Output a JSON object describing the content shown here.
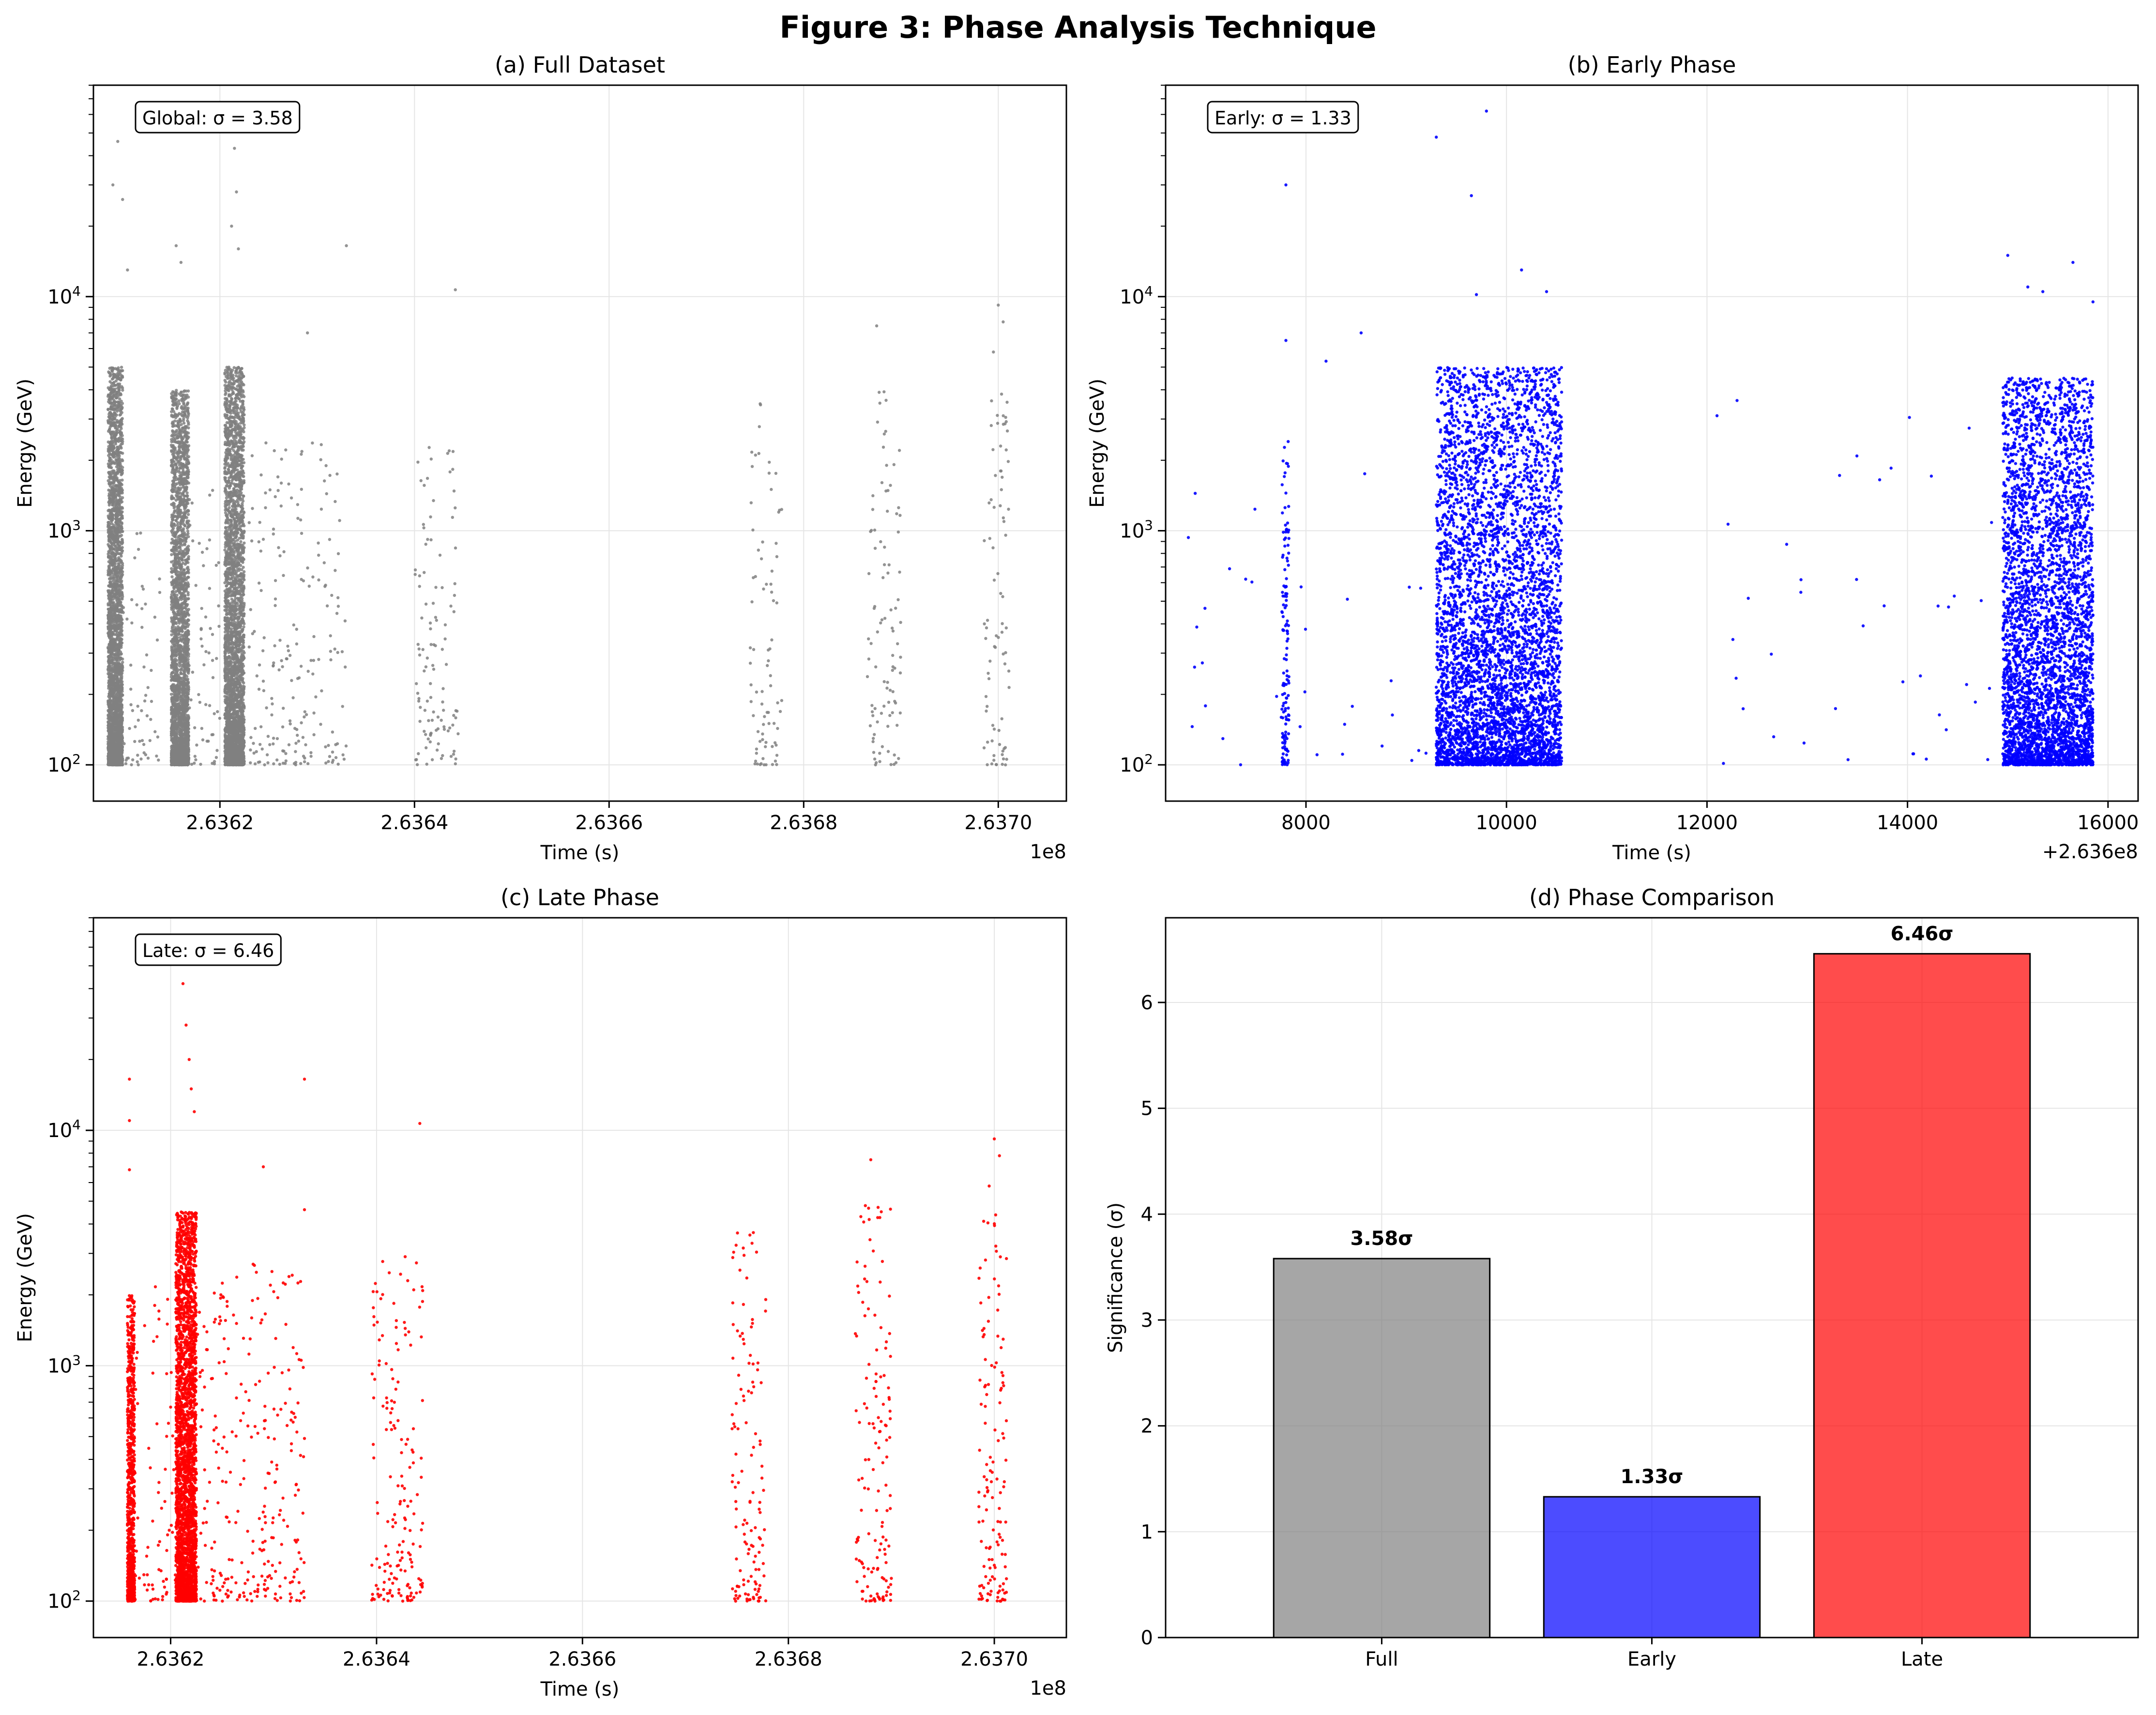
{
  "figure_title": "Figure 3: Phase Analysis Technique",
  "colors": {
    "full": "#808080",
    "early": "#0000ff",
    "late": "#ff0000",
    "grid": "#e5e5e5"
  },
  "chart_data": [
    {
      "type": "scatter",
      "title": "(a) Full Dataset",
      "xlabel": "Time (s)",
      "ylabel": "Energy (GeV)",
      "x_offset_label": "1e8",
      "xlim": [
        263607000,
        263707000
      ],
      "ylim": [
        70,
        80000
      ],
      "yscale": "log",
      "grid": true,
      "xticks": [
        {
          "v": 263620000,
          "label": "2.6362"
        },
        {
          "v": 263640000,
          "label": "2.6364"
        },
        {
          "v": 263660000,
          "label": "2.6366"
        },
        {
          "v": 263680000,
          "label": "2.6368"
        },
        {
          "v": 263700000,
          "label": "2.6370"
        }
      ],
      "yticks": [
        {
          "v": 100,
          "base": "10",
          "exp": "2"
        },
        {
          "v": 1000,
          "base": "10",
          "exp": "3"
        },
        {
          "v": 10000,
          "base": "10",
          "exp": "4"
        }
      ],
      "annotation": "Global: σ = 3.58",
      "color_key": "full",
      "clusters": [
        {
          "x": [
            263608500,
            263610000
          ],
          "n": 3000,
          "ymin": 100,
          "ymax": 5000
        },
        {
          "x": [
            263615000,
            263616800
          ],
          "n": 2800,
          "ymin": 100,
          "ymax": 4000
        },
        {
          "x": [
            263620500,
            263622500
          ],
          "n": 3500,
          "ymin": 100,
          "ymax": 5000
        },
        {
          "x": [
            263610000,
            263614000
          ],
          "n": 60,
          "ymin": 100,
          "ymax": 1000
        },
        {
          "x": [
            263616800,
            263620000
          ],
          "n": 60,
          "ymin": 100,
          "ymax": 1500
        },
        {
          "x": [
            263623000,
            263627000
          ],
          "n": 90,
          "ymin": 100,
          "ymax": 2500
        },
        {
          "x": [
            263627000,
            263633000
          ],
          "n": 110,
          "ymin": 100,
          "ymax": 2500
        },
        {
          "x": [
            263640000,
            263644500
          ],
          "n": 110,
          "ymin": 100,
          "ymax": 2500
        },
        {
          "x": [
            263674500,
            263677800
          ],
          "n": 80,
          "ymin": 100,
          "ymax": 3500
        },
        {
          "x": [
            263686500,
            263690000
          ],
          "n": 95,
          "ymin": 100,
          "ymax": 4000
        },
        {
          "x": [
            263698500,
            263701200
          ],
          "n": 80,
          "ymin": 100,
          "ymax": 4000
        }
      ],
      "outliers": [
        {
          "x": 263609500,
          "y": 46000
        },
        {
          "x": 263609000,
          "y": 30000
        },
        {
          "x": 263610000,
          "y": 26000
        },
        {
          "x": 263610500,
          "y": 13000
        },
        {
          "x": 263615500,
          "y": 16500
        },
        {
          "x": 263616000,
          "y": 14000
        },
        {
          "x": 263621500,
          "y": 43000
        },
        {
          "x": 263621700,
          "y": 28000
        },
        {
          "x": 263621200,
          "y": 20000
        },
        {
          "x": 263621900,
          "y": 16000
        },
        {
          "x": 263633000,
          "y": 16500
        },
        {
          "x": 263644200,
          "y": 10700
        },
        {
          "x": 263629000,
          "y": 7000
        },
        {
          "x": 263687500,
          "y": 7500
        },
        {
          "x": 263699500,
          "y": 5800
        },
        {
          "x": 263700000,
          "y": 9200
        },
        {
          "x": 263700500,
          "y": 7800
        }
      ]
    },
    {
      "type": "scatter",
      "title": "(b) Early Phase",
      "xlabel": "Time (s)",
      "ylabel": "Energy (GeV)",
      "x_offset_label": "+2.636e8",
      "xlim": [
        6600,
        16300
      ],
      "ylim": [
        70,
        80000
      ],
      "yscale": "log",
      "grid": true,
      "xticks": [
        {
          "v": 8000,
          "label": "8000"
        },
        {
          "v": 10000,
          "label": "10000"
        },
        {
          "v": 12000,
          "label": "12000"
        },
        {
          "v": 14000,
          "label": "14000"
        },
        {
          "v": 16000,
          "label": "16000"
        }
      ],
      "yticks": [
        {
          "v": 100,
          "base": "10",
          "exp": "2"
        },
        {
          "v": 1000,
          "base": "10",
          "exp": "3"
        },
        {
          "v": 10000,
          "base": "10",
          "exp": "4"
        }
      ],
      "annotation": "Early: σ = 1.33",
      "color_key": "early",
      "clusters": [
        {
          "x": [
            7760,
            7830
          ],
          "n": 140,
          "ymin": 100,
          "ymax": 2500
        },
        {
          "x": [
            9300,
            10550
          ],
          "n": 5200,
          "ymin": 100,
          "ymax": 5000
        },
        {
          "x": [
            14950,
            15850
          ],
          "n": 4400,
          "ymin": 100,
          "ymax": 4500
        },
        {
          "x": [
            6800,
            9200
          ],
          "n": 35,
          "ymin": 100,
          "ymax": 2000
        },
        {
          "x": [
            12000,
            14900
          ],
          "n": 40,
          "ymin": 100,
          "ymax": 3500
        }
      ],
      "outliers": [
        {
          "x": 7800,
          "y": 30000
        },
        {
          "x": 7800,
          "y": 6500
        },
        {
          "x": 8200,
          "y": 5300
        },
        {
          "x": 8550,
          "y": 7000
        },
        {
          "x": 9300,
          "y": 48000
        },
        {
          "x": 9800,
          "y": 62000
        },
        {
          "x": 9650,
          "y": 27000
        },
        {
          "x": 10150,
          "y": 13000
        },
        {
          "x": 10400,
          "y": 10500
        },
        {
          "x": 9700,
          "y": 10200
        },
        {
          "x": 15000,
          "y": 15000
        },
        {
          "x": 15200,
          "y": 11000
        },
        {
          "x": 15650,
          "y": 14000
        },
        {
          "x": 15350,
          "y": 10500
        },
        {
          "x": 15850,
          "y": 9500
        },
        {
          "x": 12300,
          "y": 3600
        },
        {
          "x": 12100,
          "y": 3100
        }
      ]
    },
    {
      "type": "scatter",
      "title": "(c) Late Phase",
      "xlabel": "Time (s)",
      "ylabel": "Energy (GeV)",
      "x_offset_label": "1e8",
      "xlim": [
        263612500,
        263707000
      ],
      "ylim": [
        70,
        80000
      ],
      "yscale": "log",
      "grid": true,
      "xticks": [
        {
          "v": 263620000,
          "label": "2.6362"
        },
        {
          "v": 263640000,
          "label": "2.6364"
        },
        {
          "v": 263660000,
          "label": "2.6366"
        },
        {
          "v": 263680000,
          "label": "2.6368"
        },
        {
          "v": 263700000,
          "label": "2.6370"
        }
      ],
      "yticks": [
        {
          "v": 100,
          "base": "10",
          "exp": "2"
        },
        {
          "v": 1000,
          "base": "10",
          "exp": "3"
        },
        {
          "v": 10000,
          "base": "10",
          "exp": "4"
        }
      ],
      "annotation": "Late: σ = 6.46",
      "color_key": "late",
      "clusters": [
        {
          "x": [
            263615800,
            263616500
          ],
          "n": 900,
          "ymin": 100,
          "ymax": 2000
        },
        {
          "x": [
            263620500,
            263622500
          ],
          "n": 3200,
          "ymin": 100,
          "ymax": 4500
        },
        {
          "x": [
            263616500,
            263620500
          ],
          "n": 70,
          "ymin": 100,
          "ymax": 2500
        },
        {
          "x": [
            263622500,
            263627000
          ],
          "n": 110,
          "ymin": 100,
          "ymax": 2500
        },
        {
          "x": [
            263627000,
            263633000
          ],
          "n": 160,
          "ymin": 100,
          "ymax": 3000
        },
        {
          "x": [
            263639500,
            263644500
          ],
          "n": 170,
          "ymin": 100,
          "ymax": 3000
        },
        {
          "x": [
            263674500,
            263677800
          ],
          "n": 130,
          "ymin": 100,
          "ymax": 4000
        },
        {
          "x": [
            263686500,
            263690000
          ],
          "n": 140,
          "ymin": 100,
          "ymax": 5000
        },
        {
          "x": [
            263698500,
            263701200
          ],
          "n": 130,
          "ymin": 100,
          "ymax": 4500
        }
      ],
      "outliers": [
        {
          "x": 263616000,
          "y": 16500
        },
        {
          "x": 263616000,
          "y": 11000
        },
        {
          "x": 263616000,
          "y": 6800
        },
        {
          "x": 263621200,
          "y": 42000
        },
        {
          "x": 263621500,
          "y": 28000
        },
        {
          "x": 263621800,
          "y": 20000
        },
        {
          "x": 263622000,
          "y": 15000
        },
        {
          "x": 263622300,
          "y": 12000
        },
        {
          "x": 263633000,
          "y": 16500
        },
        {
          "x": 263644200,
          "y": 10700
        },
        {
          "x": 263629000,
          "y": 7000
        },
        {
          "x": 263633000,
          "y": 4600
        },
        {
          "x": 263688000,
          "y": 7500
        },
        {
          "x": 263699500,
          "y": 5800
        },
        {
          "x": 263700000,
          "y": 9200
        },
        {
          "x": 263700500,
          "y": 7800
        }
      ]
    },
    {
      "type": "bar",
      "title": "(d) Phase Comparison",
      "ylabel": "Significance (σ)",
      "categories": [
        "Full",
        "Early",
        "Late"
      ],
      "values": [
        3.58,
        1.33,
        6.46
      ],
      "value_labels": [
        "3.58σ",
        "1.33σ",
        "6.46σ"
      ],
      "color_keys": [
        "full",
        "early",
        "late"
      ],
      "ylim": [
        0,
        6.8
      ],
      "yticks": [
        0,
        1,
        2,
        3,
        4,
        5,
        6
      ],
      "grid": true
    }
  ]
}
